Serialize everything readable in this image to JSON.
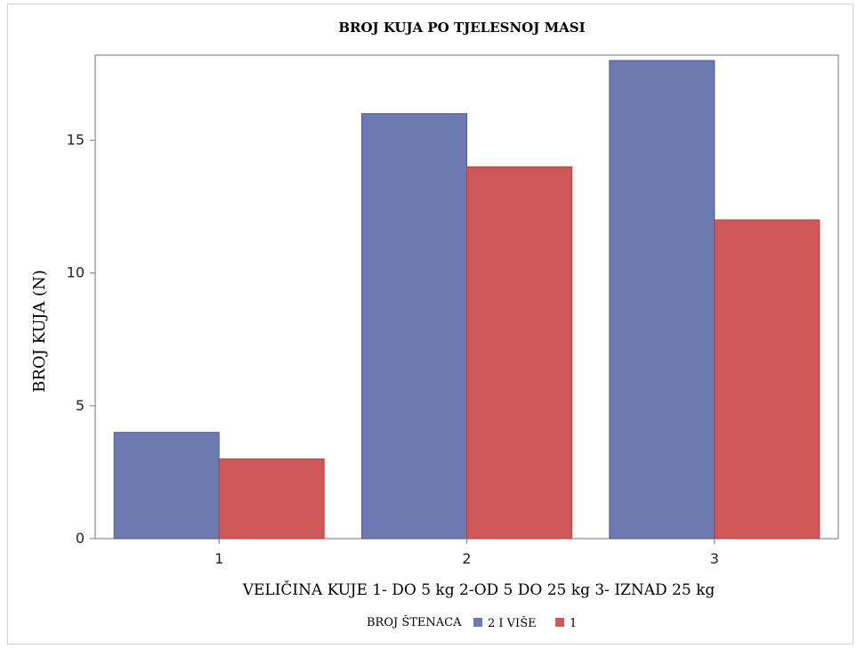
{
  "colors": {
    "series_1": "#6c7ab1",
    "series_2": "#d05757",
    "axis": "#8a8a8a"
  },
  "chart_data": {
    "type": "bar",
    "title": "BROJ KUJA PO TJELESNOJ MASI",
    "xlabel": "VELIČINA KUJE 1- DO 5 kg  2-OD 5 DO 25 kg  3- IZNAD 25 kg",
    "ylabel": "BROJ KUJA (N)",
    "categories": [
      "1",
      "2",
      "3"
    ],
    "series": [
      {
        "name": "2 I VIŠE",
        "values": [
          4,
          16,
          18
        ]
      },
      {
        "name": "1",
        "values": [
          3,
          14,
          12
        ]
      }
    ],
    "ylim": [
      0,
      18.2
    ],
    "yticks": [
      0,
      5,
      10,
      15
    ],
    "legend_title": "BROJ ŠTENACA",
    "legend_position": "bottom-center",
    "grid": false
  }
}
